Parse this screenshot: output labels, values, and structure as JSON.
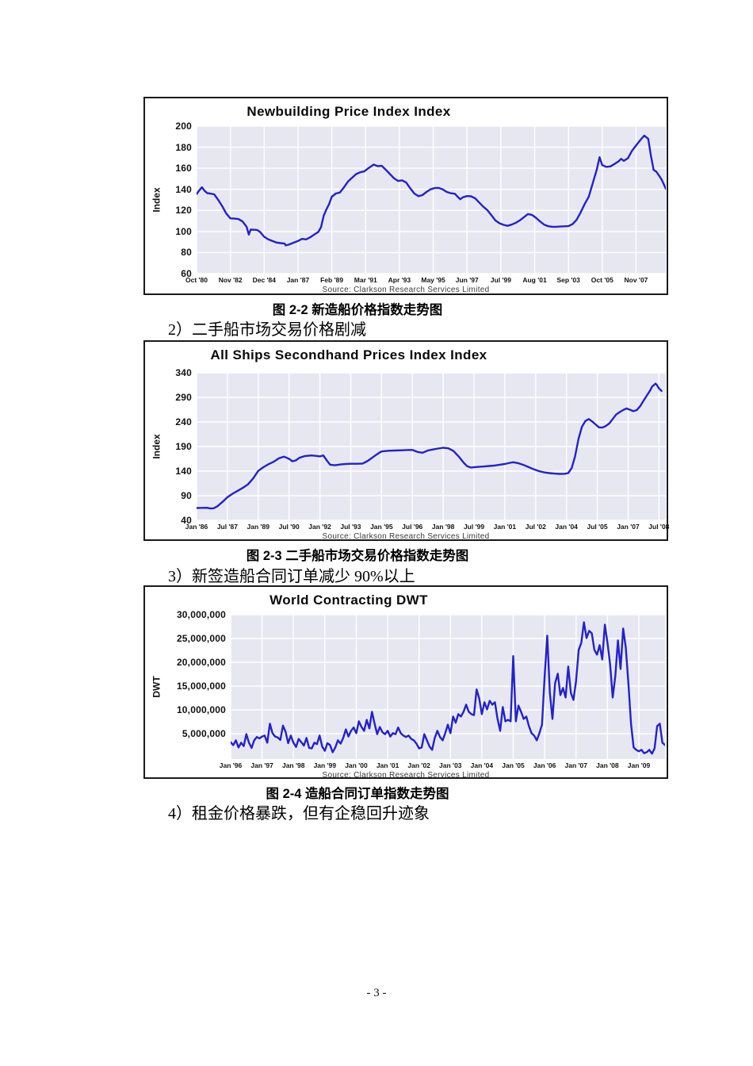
{
  "page": {
    "number": "- 3 -"
  },
  "captions": [
    {
      "figure": "图 2-2 新造船价格指数走势图",
      "para": "2）二手船市场交易价格剧减"
    },
    {
      "figure": "图 2-3  二手船市场交易价格指数走势图",
      "para": "3）新签造船合同订单减少 90%以上"
    },
    {
      "figure": "图 2-4  造船合同订单指数走势图",
      "para": "4）租金价格暴跌，但有企稳回升迹象"
    }
  ],
  "chart_data": [
    {
      "type": "line",
      "title": "Newbuilding Price Index Index",
      "ylabel": "Index",
      "source": "Source: Clarkson Research Services Limited",
      "line_color": "#2222CC",
      "plot_bg": "#E7E7F2",
      "grid_color": "#FFFFFF",
      "grid": true,
      "legend": "none",
      "ylim": [
        60,
        200
      ],
      "yticks": [
        {
          "label": "200",
          "value": 200
        },
        {
          "label": "180",
          "value": 180
        },
        {
          "label": "160",
          "value": 160
        },
        {
          "label": "140",
          "value": 140
        },
        {
          "label": "120",
          "value": 120
        },
        {
          "label": "100",
          "value": 100
        },
        {
          "label": "80",
          "value": 80
        },
        {
          "label": "60",
          "value": 60
        }
      ],
      "xticks": [
        "Oct '80",
        "Nov '82",
        "Dec '84",
        "Jan '87",
        "Feb '89",
        "Mar '91",
        "Apr '93",
        "May '95",
        "Jun '97",
        "Jul '99",
        "Aug '01",
        "Sep '03",
        "Oct '05",
        "Nov '07"
      ],
      "xtick_pos": [
        0,
        25,
        50,
        75,
        100,
        125,
        150,
        175,
        200,
        225,
        250,
        275,
        300,
        325
      ],
      "xmax": 347,
      "x_unit": "months from Oct 1980",
      "points": [
        [
          0,
          135.5
        ],
        [
          2,
          139
        ],
        [
          4,
          142
        ],
        [
          6,
          138.5
        ],
        [
          8,
          136.3
        ],
        [
          10,
          136
        ],
        [
          13,
          135.3
        ],
        [
          16,
          130
        ],
        [
          19,
          124
        ],
        [
          22,
          117
        ],
        [
          25,
          112.5
        ],
        [
          28,
          112.2
        ],
        [
          31,
          111.8
        ],
        [
          34,
          109.5
        ],
        [
          37,
          104.5
        ],
        [
          38.6,
          97
        ],
        [
          40,
          101.8
        ],
        [
          43,
          101.6
        ],
        [
          45,
          101.3
        ],
        [
          47,
          99.5
        ],
        [
          50,
          95
        ],
        [
          53,
          92.5
        ],
        [
          56,
          91
        ],
        [
          59,
          89.5
        ],
        [
          62,
          89
        ],
        [
          65,
          88.5
        ],
        [
          66,
          86.8
        ],
        [
          68,
          87.5
        ],
        [
          71,
          89
        ],
        [
          74,
          90.5
        ],
        [
          75,
          91
        ],
        [
          78,
          93
        ],
        [
          81,
          92.5
        ],
        [
          84,
          94.5
        ],
        [
          87,
          97
        ],
        [
          90,
          99.5
        ],
        [
          92,
          104
        ],
        [
          94,
          115
        ],
        [
          96,
          121
        ],
        [
          98,
          126
        ],
        [
          100,
          133
        ],
        [
          103,
          136
        ],
        [
          106,
          137
        ],
        [
          109,
          142
        ],
        [
          112,
          147.5
        ],
        [
          115,
          151
        ],
        [
          118,
          154.5
        ],
        [
          121,
          156.2
        ],
        [
          124,
          157
        ],
        [
          127,
          160
        ],
        [
          131,
          163.5
        ],
        [
          134,
          162
        ],
        [
          137,
          162.3
        ],
        [
          140,
          158.5
        ],
        [
          143,
          154.5
        ],
        [
          146,
          150.5
        ],
        [
          149,
          148
        ],
        [
          152,
          148.5
        ],
        [
          155,
          146.5
        ],
        [
          158,
          141
        ],
        [
          161,
          136
        ],
        [
          164,
          133.5
        ],
        [
          167,
          134.5
        ],
        [
          170,
          137.5
        ],
        [
          173,
          140
        ],
        [
          176,
          141.2
        ],
        [
          179,
          141.4
        ],
        [
          182,
          140
        ],
        [
          185,
          137.5
        ],
        [
          188,
          136.3
        ],
        [
          191,
          135.8
        ],
        [
          193,
          133
        ],
        [
          195,
          130.6
        ],
        [
          197,
          132.5
        ],
        [
          200,
          133.6
        ],
        [
          203,
          133.4
        ],
        [
          206,
          131.5
        ],
        [
          209,
          127.5
        ],
        [
          212,
          123.5
        ],
        [
          215,
          120.3
        ],
        [
          218,
          115.5
        ],
        [
          221,
          110.5
        ],
        [
          224,
          107.8
        ],
        [
          227,
          106.3
        ],
        [
          230,
          105.4
        ],
        [
          233,
          106.5
        ],
        [
          236,
          108.2
        ],
        [
          239,
          110.5
        ],
        [
          242,
          113.5
        ],
        [
          245,
          116.5
        ],
        [
          248,
          115.8
        ],
        [
          251,
          113
        ],
        [
          254,
          109.5
        ],
        [
          257,
          106.5
        ],
        [
          260,
          105
        ],
        [
          263,
          104.5
        ],
        [
          266,
          104.5
        ],
        [
          269,
          104.7
        ],
        [
          272,
          104.9
        ],
        [
          275,
          105.1
        ],
        [
          278,
          107
        ],
        [
          281,
          111
        ],
        [
          284,
          118
        ],
        [
          287,
          126
        ],
        [
          290,
          133
        ],
        [
          293,
          146
        ],
        [
          296,
          159
        ],
        [
          298,
          170.5
        ],
        [
          300,
          163
        ],
        [
          303,
          161.3
        ],
        [
          306,
          161.8
        ],
        [
          309,
          164
        ],
        [
          312,
          166.5
        ],
        [
          314,
          168.9
        ],
        [
          316,
          167
        ],
        [
          319,
          169.5
        ],
        [
          322,
          176.5
        ],
        [
          325,
          181.6
        ],
        [
          328,
          186.5
        ],
        [
          331,
          191
        ],
        [
          334,
          188
        ],
        [
          336,
          172
        ],
        [
          338,
          158.5
        ],
        [
          340,
          156.7
        ],
        [
          342,
          153
        ],
        [
          344,
          149
        ],
        [
          346,
          143.5
        ],
        [
          347,
          140.5
        ]
      ]
    },
    {
      "type": "line",
      "title": "All Ships Secondhand Prices Index Index",
      "ylabel": "Index",
      "source": "Source: Clarkson Research Services Limited",
      "line_color": "#2222CC",
      "plot_bg": "#E7E7F2",
      "grid_color": "#FFFFFF",
      "grid": true,
      "legend": "none",
      "ylim": [
        40,
        340
      ],
      "yticks": [
        {
          "label": "340",
          "value": 340
        },
        {
          "label": "290",
          "value": 290
        },
        {
          "label": "240",
          "value": 240
        },
        {
          "label": "190",
          "value": 190
        },
        {
          "label": "140",
          "value": 140
        },
        {
          "label": "90",
          "value": 90
        },
        {
          "label": "40",
          "value": 40
        }
      ],
      "xticks": [
        "Jan '86",
        "Jul '87",
        "Jan '89",
        "Jul '90",
        "Jan '92",
        "Jul '93",
        "Jan '95",
        "Jul '96",
        "Jan '98",
        "Jul '99",
        "Jan '01",
        "Jul '02",
        "Jan '04",
        "Jul '05",
        "Jan '07",
        "Jul '08"
      ],
      "xtick_pos": [
        0,
        18,
        36,
        54,
        72,
        90,
        108,
        126,
        144,
        162,
        180,
        198,
        216,
        234,
        252,
        270
      ],
      "xmax": 274,
      "x_unit": "months from Jan 1986",
      "points": [
        [
          0,
          65
        ],
        [
          3,
          65.3
        ],
        [
          6,
          65.5
        ],
        [
          8,
          64
        ],
        [
          10,
          64.5
        ],
        [
          12,
          68
        ],
        [
          15,
          77
        ],
        [
          18,
          87
        ],
        [
          21,
          94
        ],
        [
          24,
          100
        ],
        [
          27,
          106
        ],
        [
          30,
          113
        ],
        [
          33,
          125
        ],
        [
          36,
          140.5
        ],
        [
          39,
          148
        ],
        [
          42,
          154
        ],
        [
          45,
          159
        ],
        [
          48,
          166
        ],
        [
          51,
          169.5
        ],
        [
          54,
          165
        ],
        [
          56,
          160
        ],
        [
          58,
          162
        ],
        [
          60,
          167
        ],
        [
          63,
          170.5
        ],
        [
          67,
          172
        ],
        [
          70,
          171
        ],
        [
          72,
          170
        ],
        [
          74,
          172
        ],
        [
          76,
          162
        ],
        [
          78,
          153
        ],
        [
          81,
          152
        ],
        [
          84,
          153.5
        ],
        [
          87,
          154.5
        ],
        [
          90,
          155
        ],
        [
          94,
          155
        ],
        [
          97,
          155.5
        ],
        [
          100,
          161
        ],
        [
          104,
          171
        ],
        [
          107,
          178
        ],
        [
          108,
          180
        ],
        [
          112,
          181.5
        ],
        [
          116,
          182
        ],
        [
          120,
          182.5
        ],
        [
          124,
          183
        ],
        [
          126,
          183
        ],
        [
          129,
          179
        ],
        [
          132,
          177.5
        ],
        [
          135,
          182
        ],
        [
          138,
          184
        ],
        [
          141,
          186
        ],
        [
          144,
          187.5
        ],
        [
          147,
          186.5
        ],
        [
          150,
          181
        ],
        [
          153,
          170
        ],
        [
          156,
          157
        ],
        [
          158,
          150
        ],
        [
          160,
          147.5
        ],
        [
          164,
          148.5
        ],
        [
          168,
          149.5
        ],
        [
          171,
          150.5
        ],
        [
          174,
          151.5
        ],
        [
          177,
          153
        ],
        [
          180,
          154.5
        ],
        [
          183,
          157
        ],
        [
          185,
          158
        ],
        [
          188,
          156
        ],
        [
          191,
          152.5
        ],
        [
          194,
          148
        ],
        [
          197,
          143.5
        ],
        [
          200,
          140
        ],
        [
          203,
          137.5
        ],
        [
          206,
          136
        ],
        [
          209,
          135
        ],
        [
          212,
          134.3
        ],
        [
          215,
          134.6
        ],
        [
          217,
          136
        ],
        [
          219,
          146
        ],
        [
          221,
          170
        ],
        [
          223,
          205
        ],
        [
          225,
          230
        ],
        [
          227,
          242
        ],
        [
          229,
          246
        ],
        [
          231,
          241
        ],
        [
          233,
          235
        ],
        [
          235,
          229
        ],
        [
          237,
          228.5
        ],
        [
          239,
          232
        ],
        [
          241,
          237
        ],
        [
          243,
          246
        ],
        [
          245,
          255
        ],
        [
          247,
          260
        ],
        [
          249,
          264
        ],
        [
          251,
          267.5
        ],
        [
          253,
          265
        ],
        [
          255,
          262
        ],
        [
          257,
          264
        ],
        [
          259,
          272
        ],
        [
          261,
          283
        ],
        [
          263,
          294
        ],
        [
          265,
          305
        ],
        [
          266,
          312
        ],
        [
          267,
          315
        ],
        [
          268,
          318
        ],
        [
          269,
          314
        ],
        [
          270,
          308
        ],
        [
          271.5,
          303
        ]
      ]
    },
    {
      "type": "line",
      "title": "World Contracting DWT",
      "ylabel": "DWT",
      "source": "Source: Clarkson Research Services Limited",
      "line_color": "#2222CC",
      "plot_bg": "#E7E7F2",
      "grid_color": "#FFFFFF",
      "grid": true,
      "legend": "none",
      "ylim": [
        0,
        30
      ],
      "y0_offset": 2,
      "values_unit": "million DWT per month",
      "yticks": [
        {
          "label": "30,000,000",
          "value": 30
        },
        {
          "label": "25,000,000",
          "value": 25
        },
        {
          "label": "20,000,000",
          "value": 20
        },
        {
          "label": "15,000,000",
          "value": 15
        },
        {
          "label": "10,000,000",
          "value": 10
        },
        {
          "label": "5,000,000",
          "value": 5
        }
      ],
      "xticks": [
        "Jan '96",
        "Jan '97",
        "Jan '98",
        "Jan '99",
        "Jan '00",
        "Jan '01",
        "Jan '02",
        "Jan '03",
        "Jan '04",
        "Jan '05",
        "Jan '06",
        "Jan '07",
        "Jan '08",
        "Jan '09"
      ],
      "xtick_pos": [
        0,
        12,
        24,
        36,
        48,
        60,
        72,
        84,
        96,
        108,
        120,
        132,
        144,
        156
      ],
      "xmax": 166,
      "x_unit": "months from Jan 1996",
      "values": [
        3.2,
        2.6,
        3.6,
        2.1,
        3.1,
        2.4,
        4.9,
        3.1,
        2.0,
        3.6,
        4.3,
        4.0,
        4.4,
        4.6,
        3.1,
        7.1,
        5.1,
        4.4,
        4.2,
        3.7,
        6.7,
        5.4,
        3.0,
        4.6,
        3.1,
        2.2,
        3.9,
        3.2,
        2.5,
        4.1,
        2.0,
        1.9,
        3.1,
        2.8,
        4.6,
        2.3,
        1.4,
        3.0,
        2.6,
        1.1,
        2.1,
        3.6,
        2.9,
        4.1,
        5.9,
        4.4,
        5.6,
        6.3,
        5.1,
        7.6,
        6.4,
        5.6,
        7.9,
        6.1,
        9.6,
        7.1,
        4.9,
        6.4,
        5.3,
        4.9,
        5.6,
        4.4,
        5.1,
        4.9,
        6.3,
        5.1,
        4.6,
        4.3,
        4.6,
        3.9,
        3.6,
        2.9,
        1.9,
        2.1,
        4.9,
        3.6,
        2.3,
        1.6,
        4.1,
        5.6,
        4.3,
        3.6,
        5.1,
        6.9,
        5.1,
        8.6,
        7.3,
        9.1,
        8.6,
        9.6,
        11.1,
        9.6,
        9.1,
        8.9,
        14.3,
        12.4,
        9.1,
        11.6,
        10.1,
        11.9,
        11.1,
        11.6,
        8.1,
        5.6,
        10.6,
        7.6,
        7.9,
        7.6,
        21.3,
        7.6,
        10.9,
        9.6,
        8.1,
        8.6,
        6.6,
        5.1,
        4.6,
        3.6,
        5.1,
        6.9,
        16.9,
        25.6,
        13.6,
        8.1,
        15.6,
        17.6,
        13.1,
        14.6,
        12.6,
        19.1,
        13.6,
        12.1,
        16.1,
        22.6,
        24.1,
        28.4,
        25.1,
        26.6,
        26.1,
        22.6,
        21.6,
        23.6,
        20.6,
        27.9,
        24.1,
        19.6,
        12.6,
        17.1,
        24.6,
        18.6,
        27.1,
        23.1,
        15.6,
        7.1,
        2.1,
        1.6,
        1.3,
        1.6,
        0.9,
        1.1,
        1.6,
        0.8,
        1.9,
        6.6,
        7.1,
        3.1,
        2.6
      ]
    }
  ]
}
